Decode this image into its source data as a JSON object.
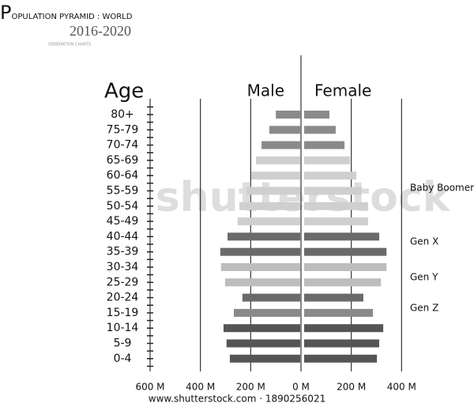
{
  "chart_data": {
    "type": "population-pyramid",
    "title": "POPULATION PYRAMID : WORLD",
    "subtitle": "2016-2020",
    "caption": "GENERATION CHARTS",
    "y_label": "Age",
    "categories": [
      "80+",
      "75-79",
      "70-74",
      "65-69",
      "60-64",
      "55-59",
      "50-54",
      "45-49",
      "40-44",
      "35-39",
      "30-34",
      "25-29",
      "20-24",
      "15-19",
      "10-14",
      "5-9",
      "0-4"
    ],
    "colors": [
      "#8a8a8a",
      "#8a8a8a",
      "#8a8a8a",
      "#cfcfcf",
      "#cfcfcf",
      "#cfcfcf",
      "#cfcfcf",
      "#cfcfcf",
      "#6a6a6a",
      "#6a6a6a",
      "#bdbdbd",
      "#bdbdbd",
      "#6a6a6a",
      "#8a8a8a",
      "#555555",
      "#555555",
      "#555555"
    ],
    "series": [
      {
        "name": "Male",
        "values": [
          100,
          126,
          157,
          179,
          198,
          217,
          245,
          252,
          292,
          321,
          318,
          302,
          233,
          267,
          308,
          296,
          283
        ]
      },
      {
        "name": "Female",
        "values": [
          113,
          138,
          173,
          195,
          220,
          242,
          267,
          267,
          311,
          340,
          340,
          318,
          248,
          286,
          327,
          311,
          302
        ]
      }
    ],
    "xlim": [
      0,
      600
    ],
    "male_xticks": [
      {
        "value": 600,
        "label": "600 M"
      },
      {
        "value": 400,
        "label": "400 M"
      },
      {
        "value": 200,
        "label": "200 M"
      },
      {
        "value": 0,
        "label": "0 M"
      }
    ],
    "female_xticks": [
      {
        "value": 200,
        "label": "200 M"
      },
      {
        "value": 400,
        "label": "400 M"
      }
    ],
    "annotations": [
      "Baby Boomer",
      "Gen X",
      "Gen Y",
      "Gen Z"
    ],
    "watermark": "shutterstock",
    "footer": "www.shutterstock.com · 1890256021"
  }
}
